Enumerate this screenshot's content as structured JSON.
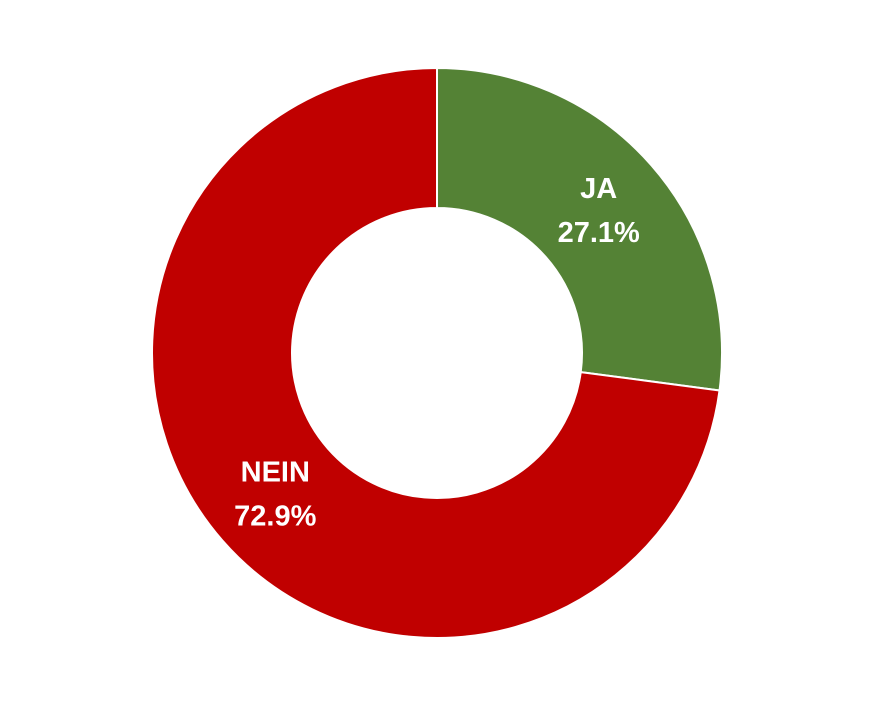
{
  "chart_data": {
    "type": "donut",
    "categories": [
      "JA",
      "NEIN"
    ],
    "values": [
      27.1,
      72.9
    ],
    "value_labels": [
      "27.1%",
      "72.9%"
    ],
    "colors": [
      "#548235",
      "#c00000"
    ]
  }
}
